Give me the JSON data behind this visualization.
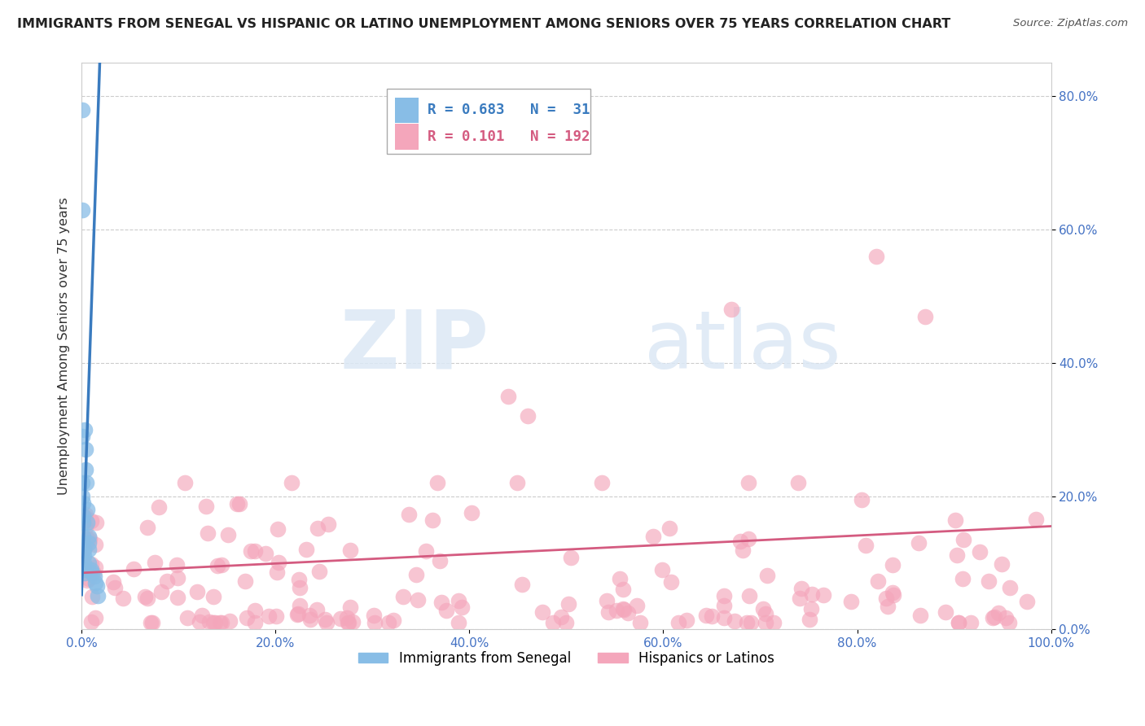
{
  "title": "IMMIGRANTS FROM SENEGAL VS HISPANIC OR LATINO UNEMPLOYMENT AMONG SENIORS OVER 75 YEARS CORRELATION CHART",
  "source": "Source: ZipAtlas.com",
  "ylabel": "Unemployment Among Seniors over 75 years",
  "xlim": [
    0,
    1.0
  ],
  "ylim": [
    0,
    0.85
  ],
  "xticks": [
    0.0,
    0.2,
    0.4,
    0.6,
    0.8,
    1.0
  ],
  "xticklabels": [
    "0.0%",
    "20.0%",
    "40.0%",
    "60.0%",
    "80.0%",
    "100.0%"
  ],
  "yticks": [
    0.0,
    0.2,
    0.4,
    0.6,
    0.8
  ],
  "yticklabels": [
    "0.0%",
    "20.0%",
    "40.0%",
    "60.0%",
    "80.0%"
  ],
  "legend_r1": "R = 0.683",
  "legend_n1": "N =  31",
  "legend_r2": "R = 0.101",
  "legend_n2": "N = 192",
  "blue_color": "#88bde6",
  "pink_color": "#f4a6bb",
  "blue_line_color": "#3a7bbf",
  "pink_line_color": "#d45b80",
  "watermark_zip": "ZIP",
  "watermark_atlas": "atlas",
  "blue_trend_x": [
    0.0,
    0.019
  ],
  "blue_trend_y": [
    0.05,
    0.86
  ],
  "pink_trend_x": [
    0.0,
    1.0
  ],
  "pink_trend_y": [
    0.085,
    0.155
  ]
}
